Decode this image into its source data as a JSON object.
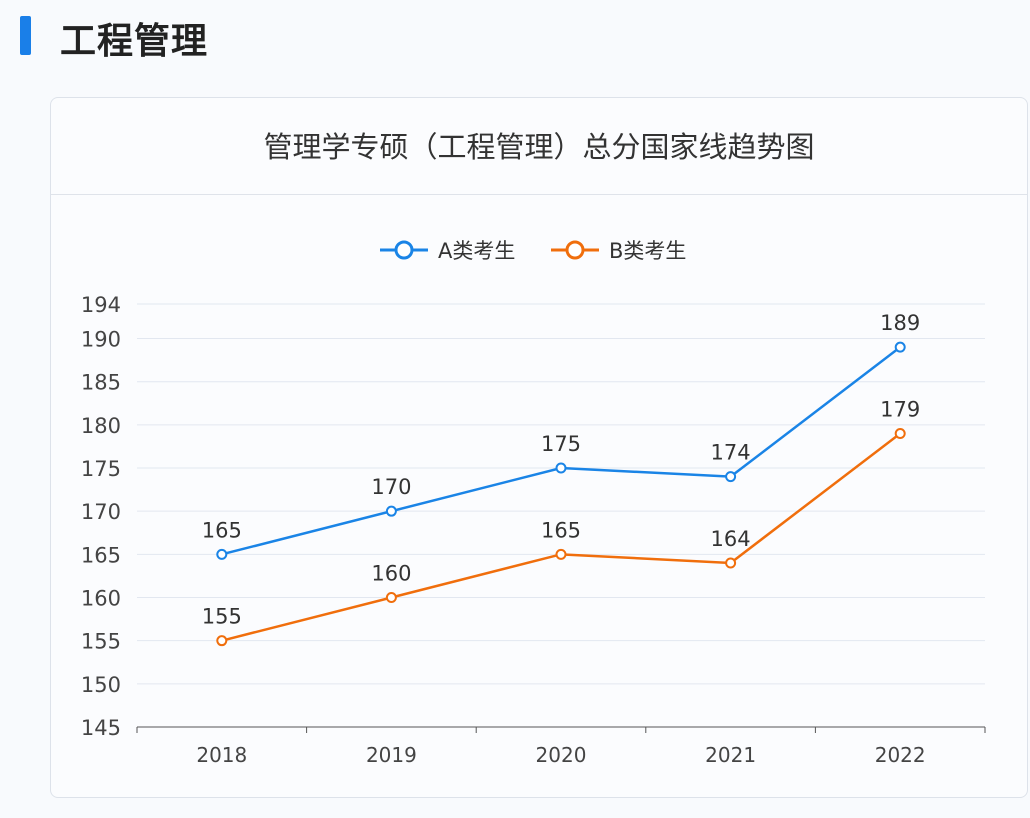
{
  "page": {
    "heading": "工程管理",
    "accent": "#1a7fe8"
  },
  "chart_data": {
    "type": "line",
    "title": "管理学专硕（工程管理）总分国家线趋势图",
    "categories": [
      "2018",
      "2019",
      "2020",
      "2021",
      "2022"
    ],
    "series": [
      {
        "name": "A类考生",
        "color": "#1a84e6",
        "values": [
          165,
          170,
          175,
          174,
          189
        ]
      },
      {
        "name": "B类考生",
        "color": "#f06e0c",
        "values": [
          155,
          160,
          165,
          164,
          179
        ]
      }
    ],
    "yticks": [
      145,
      150,
      155,
      160,
      165,
      170,
      175,
      180,
      185,
      190,
      194
    ],
    "ylim": [
      145,
      194
    ],
    "grid": true,
    "legend": "top-center",
    "data_labels": true
  }
}
